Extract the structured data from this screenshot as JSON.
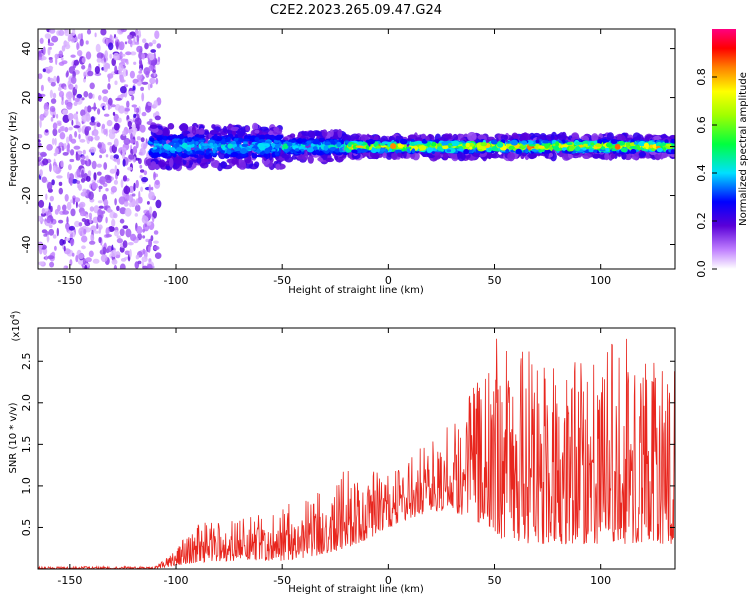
{
  "title": "C2E2.2023.265.09.47.G24",
  "chart_data": [
    {
      "type": "heatmap",
      "xlabel": "Height of straight line (km)",
      "ylabel": "Frequency (Hz)",
      "xlim": [
        -165,
        135
      ],
      "ylim": [
        -50,
        48
      ],
      "xticks": [
        -150,
        -100,
        -50,
        0,
        50,
        100
      ],
      "yticks": [
        -40,
        -20,
        0,
        20,
        40
      ],
      "colorbar": {
        "label": "Normalized spectral amplitude",
        "range": [
          0,
          1
        ],
        "ticks": [
          "0.0",
          "0.2",
          "0.4",
          "0.6",
          "0.8"
        ],
        "tick_values": [
          0.0,
          0.2,
          0.4,
          0.6,
          0.8
        ]
      },
      "signal_band": {
        "center_frequency_hz": 0,
        "noise_region_km": [
          -165,
          -112
        ],
        "band_segments": [
          {
            "x": [
              -112,
              -50
            ],
            "half_width_hz": 6,
            "peak_amplitude": 0.45
          },
          {
            "x": [
              -50,
              -20
            ],
            "half_width_hz": 4,
            "peak_amplitude": 0.5
          },
          {
            "x": [
              -20,
              135
            ],
            "half_width_hz": 3,
            "peak_amplitude": 0.95
          }
        ]
      },
      "grid": false
    },
    {
      "type": "line",
      "xlabel": "Height of straight line (km)",
      "ylabel": "SNR (10 * v/v)",
      "multiplier": "(x10",
      "multiplier_exp": "4",
      "multiplier_close": ")",
      "xlim": [
        -165,
        135
      ],
      "ylim": [
        0,
        2.9
      ],
      "xticks": [
        -150,
        -100,
        -50,
        0,
        50,
        100
      ],
      "yticks": [
        "0.5",
        "1.0",
        "1.5",
        "2.0",
        "2.5"
      ],
      "ytick_values": [
        0.5,
        1.0,
        1.5,
        2.0,
        2.5
      ],
      "line_color": "#e8261e",
      "envelope": {
        "x": [
          -165,
          -110,
          -105,
          -90,
          -70,
          -50,
          -35,
          -20,
          -10,
          0,
          10,
          20,
          30,
          40,
          50,
          60,
          80,
          100,
          110,
          120,
          135
        ],
        "low": [
          0,
          0,
          0.02,
          0.08,
          0.1,
          0.1,
          0.15,
          0.25,
          0.35,
          0.5,
          0.6,
          0.7,
          0.7,
          0.6,
          0.4,
          0.3,
          0.3,
          0.3,
          0.3,
          0.3,
          0.3
        ],
        "high": [
          0.03,
          0.03,
          0.12,
          0.55,
          0.6,
          0.75,
          0.95,
          1.2,
          1.25,
          1.15,
          1.35,
          1.6,
          1.75,
          2.3,
          2.85,
          2.65,
          2.6,
          2.55,
          2.9,
          2.55,
          2.45
        ]
      },
      "grid": false
    }
  ]
}
